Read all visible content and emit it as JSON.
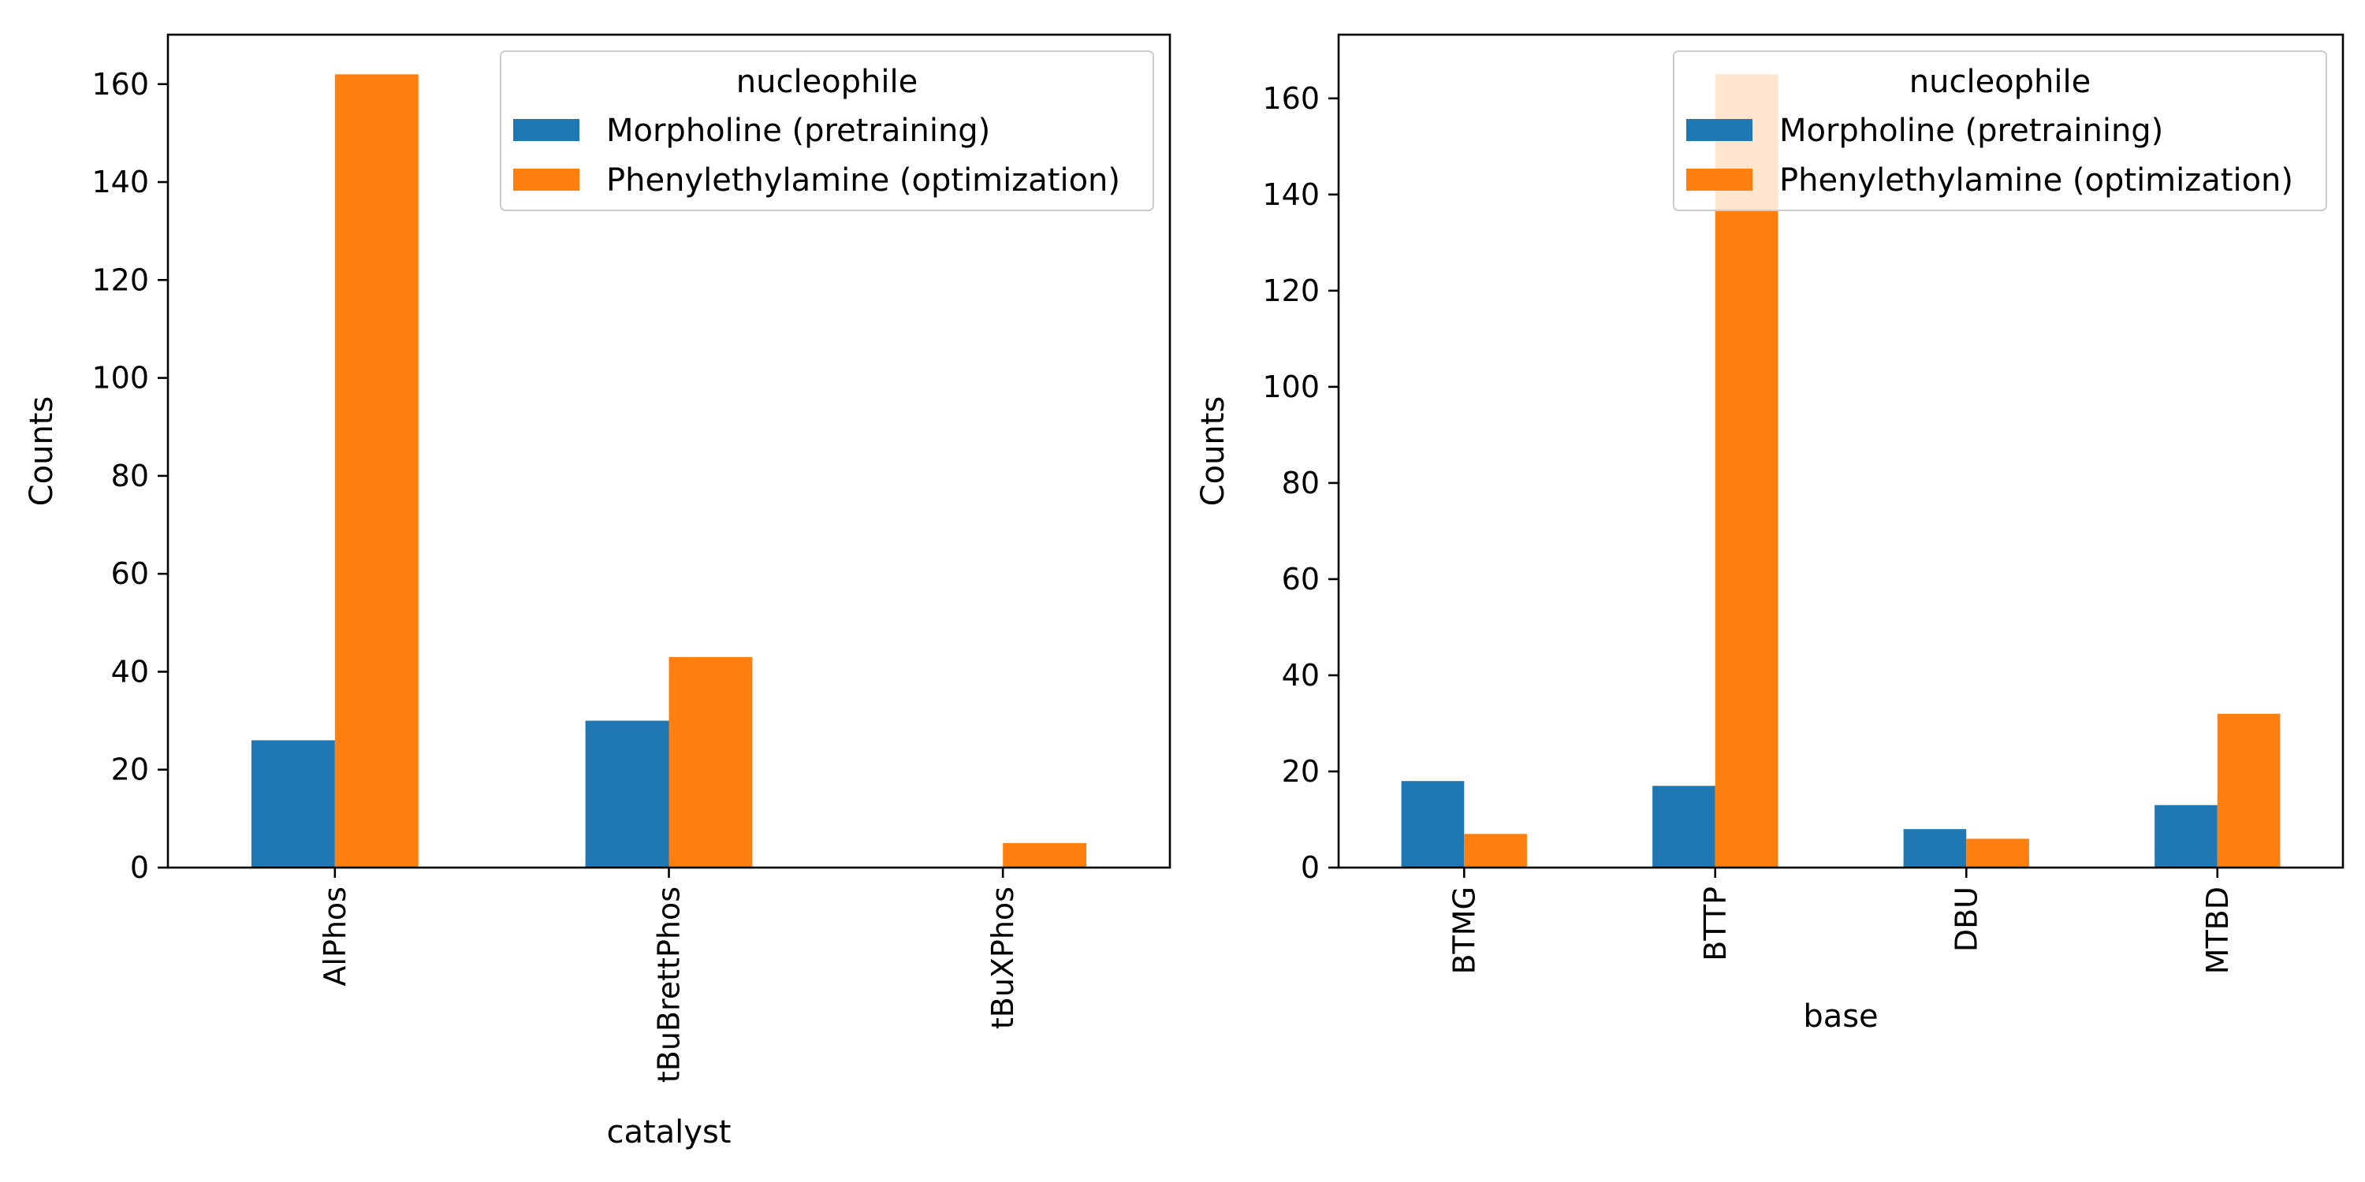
{
  "colors": {
    "morpholine": "#1f77b4",
    "phenylethylamine": "#ff7f0e"
  },
  "chart_data": [
    {
      "type": "bar",
      "categories": [
        "AlPhos",
        "tBuBrettPhos",
        "tBuXPhos"
      ],
      "series": [
        {
          "name": "Morpholine (pretraining)",
          "values": [
            26,
            30,
            0
          ]
        },
        {
          "name": "Phenylethylamine (optimization)",
          "values": [
            162,
            43,
            5
          ]
        }
      ],
      "xlabel": "catalyst",
      "ylabel": "Counts",
      "ylim": [
        0,
        170.1
      ],
      "yticks": [
        0,
        20,
        40,
        60,
        80,
        100,
        120,
        140,
        160
      ],
      "legend": {
        "title": "nucleophile",
        "placement": "top-right"
      },
      "grid": false
    },
    {
      "type": "bar",
      "categories": [
        "BTMG",
        "BTTP",
        "DBU",
        "MTBD"
      ],
      "series": [
        {
          "name": "Morpholine (pretraining)",
          "values": [
            18,
            17,
            8,
            13
          ]
        },
        {
          "name": "Phenylethylamine (optimization)",
          "values": [
            7,
            165,
            6,
            32
          ]
        }
      ],
      "xlabel": "base",
      "ylabel": "Counts",
      "ylim": [
        0,
        173.25
      ],
      "yticks": [
        0,
        20,
        40,
        60,
        80,
        100,
        120,
        140,
        160
      ],
      "legend": {
        "title": "nucleophile",
        "placement": "top-right"
      },
      "grid": false
    }
  ]
}
